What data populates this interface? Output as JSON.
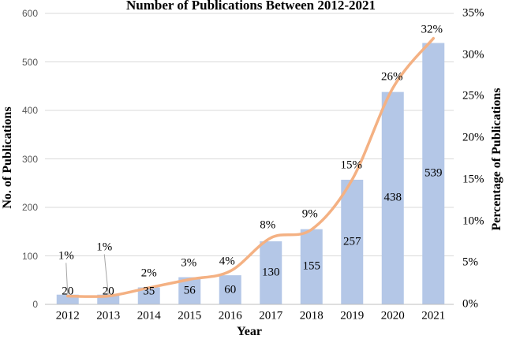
{
  "chart_data": {
    "type": "combo-bar-line",
    "title": "Number of Publications Between 2012-2021",
    "categories": [
      "2012",
      "2013",
      "2014",
      "2015",
      "2016",
      "2017",
      "2018",
      "2019",
      "2020",
      "2021"
    ],
    "series": [
      {
        "name": "No. of Publications",
        "type": "bar",
        "axis": "left",
        "values": [
          20,
          20,
          35,
          56,
          60,
          130,
          155,
          257,
          438,
          539
        ],
        "labels": [
          "20",
          "20",
          "35",
          "56",
          "60",
          "130",
          "155",
          "257",
          "438",
          "539"
        ],
        "color": "#b4c7e7"
      },
      {
        "name": "Percentage of Publications",
        "type": "line",
        "axis": "right",
        "values": [
          1,
          1,
          2,
          3,
          4,
          8,
          9,
          15,
          26,
          32
        ],
        "labels": [
          "1%",
          "1%",
          "2%",
          "3%",
          "4%",
          "8%",
          "9%",
          "15%",
          "26%",
          "32%"
        ],
        "color": "#f4b183"
      }
    ],
    "xlabel": "Year",
    "left_axis": {
      "label": "No. of Publications",
      "min": 0,
      "max": 600,
      "tick_step": 100,
      "ticks": [
        "0",
        "100",
        "200",
        "300",
        "400",
        "500",
        "600"
      ]
    },
    "right_axis": {
      "label": "Percentage of Publications",
      "min": 0,
      "max": 35,
      "tick_step": 5,
      "ticks": [
        "0%",
        "5%",
        "10%",
        "15%",
        "20%",
        "25%",
        "30%",
        "35%"
      ]
    },
    "grid": true,
    "legend": "none",
    "colors": {
      "bar": "#b4c7e7",
      "line": "#f4b183",
      "gridline": "#d9d9d9",
      "axis_line": "#bfbfbf",
      "leader_line": "#a6a6a6",
      "left_tick_text": "#595959",
      "text": "#000000"
    }
  }
}
